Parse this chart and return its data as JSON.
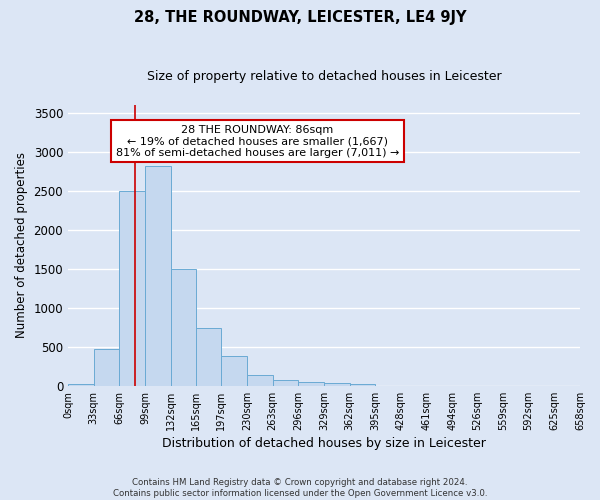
{
  "title": "28, THE ROUNDWAY, LEICESTER, LE4 9JY",
  "subtitle": "Size of property relative to detached houses in Leicester",
  "xlabel": "Distribution of detached houses by size in Leicester",
  "ylabel": "Number of detached properties",
  "annotation_title": "28 THE ROUNDWAY: 86sqm",
  "annotation_line2": "← 19% of detached houses are smaller (1,667)",
  "annotation_line3": "81% of semi-detached houses are larger (7,011) →",
  "property_size_sqm": 86,
  "bar_counts": [
    20,
    470,
    2500,
    2820,
    1500,
    740,
    380,
    145,
    75,
    50,
    40,
    25,
    0,
    0,
    0,
    0,
    0,
    0,
    0,
    0
  ],
  "bin_edges": [
    0,
    33,
    66,
    99,
    132,
    165,
    197,
    230,
    263,
    296,
    329,
    362,
    395,
    428,
    461,
    494,
    526,
    559,
    592,
    625,
    658
  ],
  "bin_labels": [
    "0sqm",
    "33sqm",
    "66sqm",
    "99sqm",
    "132sqm",
    "165sqm",
    "197sqm",
    "230sqm",
    "263sqm",
    "296sqm",
    "329sqm",
    "362sqm",
    "395sqm",
    "428sqm",
    "461sqm",
    "494sqm",
    "526sqm",
    "559sqm",
    "592sqm",
    "625sqm",
    "658sqm"
  ],
  "bar_color": "#c5d8ef",
  "bar_edge_color": "#6aaad4",
  "vline_color": "#cc0000",
  "vline_x": 86,
  "annotation_box_color": "#ffffff",
  "annotation_box_edge": "#cc0000",
  "background_color": "#dce6f5",
  "plot_bg_color": "#dce6f5",
  "grid_color": "#ffffff",
  "ylim": [
    0,
    3600
  ],
  "yticks": [
    0,
    500,
    1000,
    1500,
    2000,
    2500,
    3000,
    3500
  ],
  "footer_line1": "Contains HM Land Registry data © Crown copyright and database right 2024.",
  "footer_line2": "Contains public sector information licensed under the Open Government Licence v3.0."
}
